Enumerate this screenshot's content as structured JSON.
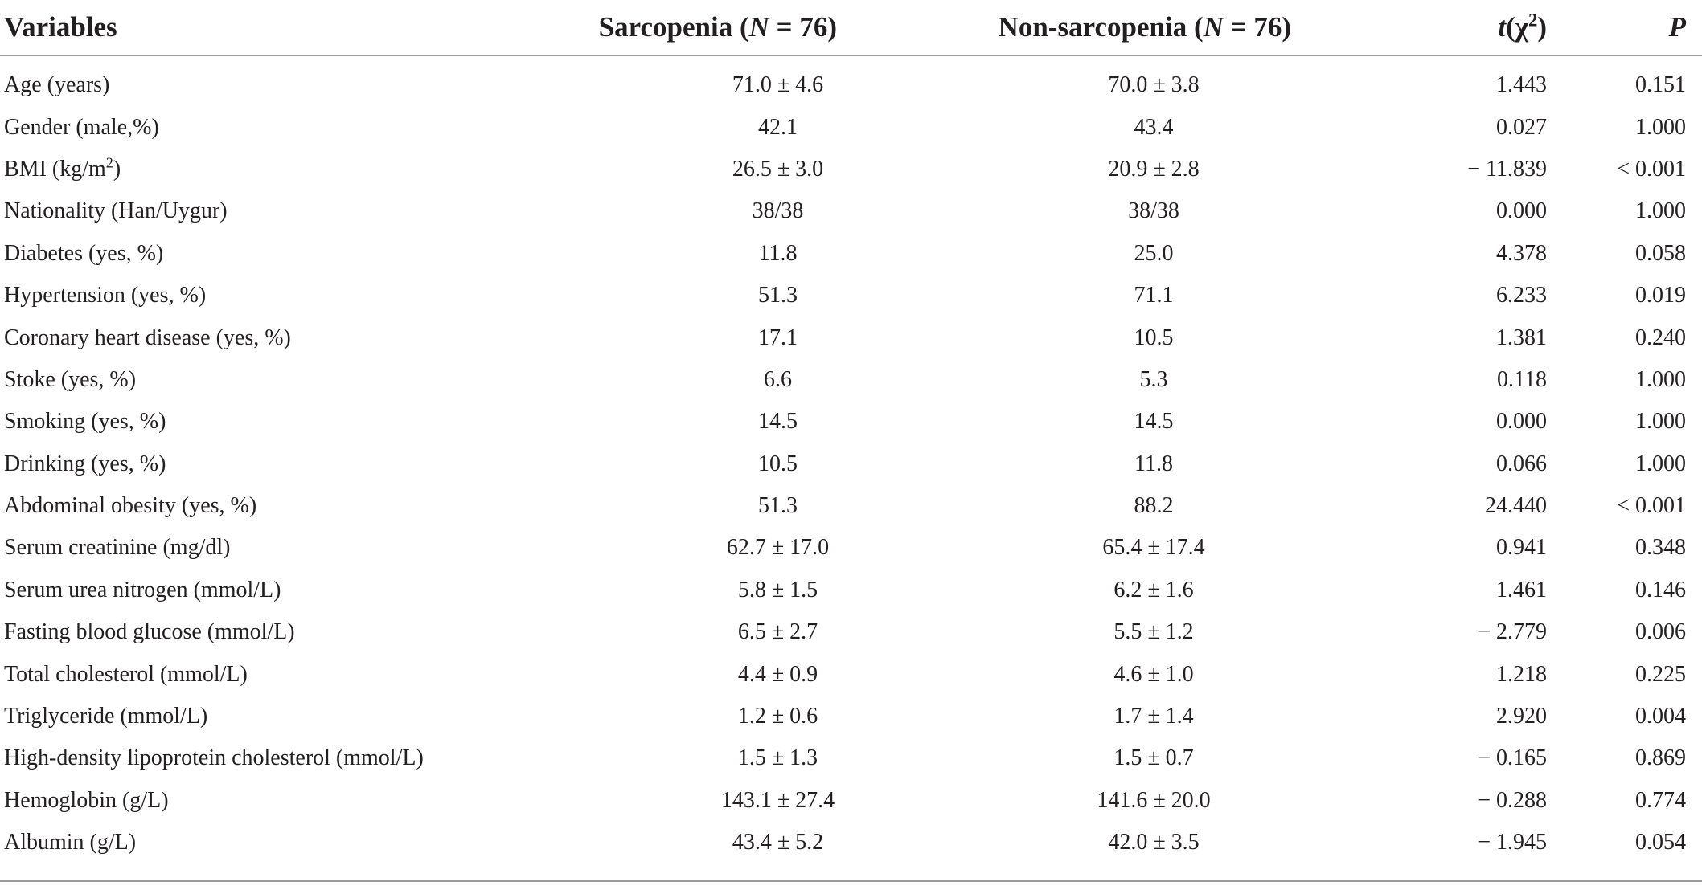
{
  "table": {
    "headers": {
      "variables": "Variables",
      "sarcopenia_prefix": "Sarcopenia (",
      "sarcopenia_n": "N",
      "sarcopenia_suffix": " = 76)",
      "non_prefix": "Non-sarcopenia (",
      "non_n": "N",
      "non_suffix": " = 76)",
      "t_italic": "t",
      "t_open": "(χ",
      "t_sup": "2",
      "t_close": ")",
      "p": "P"
    },
    "rows": [
      {
        "variable": "Age (years)",
        "sarcopenia": "71.0 ± 4.6",
        "non_sarcopenia": "70.0 ± 3.8",
        "t": "1.443",
        "p": "0.151"
      },
      {
        "variable": "Gender (male,%)",
        "sarcopenia": "42.1",
        "non_sarcopenia": "43.4",
        "t": "0.027",
        "p": "1.000"
      },
      {
        "variable": "BMI (kg/m",
        "variable_sup": "2",
        "variable_suffix": ")",
        "sarcopenia": "26.5 ± 3.0",
        "non_sarcopenia": "20.9 ± 2.8",
        "t": "− 11.839",
        "p": "<  0.001"
      },
      {
        "variable": "Nationality (Han/Uygur)",
        "sarcopenia": "38/38",
        "non_sarcopenia": "38/38",
        "t": "0.000",
        "p": "1.000"
      },
      {
        "variable": "Diabetes (yes, %)",
        "sarcopenia": "11.8",
        "non_sarcopenia": "25.0",
        "t": "4.378",
        "p": "0.058"
      },
      {
        "variable": "Hypertension (yes, %)",
        "sarcopenia": "51.3",
        "non_sarcopenia": "71.1",
        "t": "6.233",
        "p": "0.019"
      },
      {
        "variable": "Coronary heart disease (yes, %)",
        "sarcopenia": "17.1",
        "non_sarcopenia": "10.5",
        "t": "1.381",
        "p": "0.240"
      },
      {
        "variable": "Stoke (yes, %)",
        "sarcopenia": "6.6",
        "non_sarcopenia": "5.3",
        "t": "0.118",
        "p": "1.000"
      },
      {
        "variable": "Smoking (yes, %)",
        "sarcopenia": "14.5",
        "non_sarcopenia": "14.5",
        "t": "0.000",
        "p": "1.000"
      },
      {
        "variable": "Drinking (yes, %)",
        "sarcopenia": "10.5",
        "non_sarcopenia": "11.8",
        "t": "0.066",
        "p": "1.000"
      },
      {
        "variable": "Abdominal obesity (yes, %)",
        "sarcopenia": "51.3",
        "non_sarcopenia": "88.2",
        "t": "24.440",
        "p": "<  0.001"
      },
      {
        "variable": "Serum creatinine (mg/dl)",
        "sarcopenia": "62.7 ± 17.0",
        "non_sarcopenia": "65.4 ± 17.4",
        "t": "0.941",
        "p": "0.348"
      },
      {
        "variable": "Serum urea nitrogen (mmol/L)",
        "sarcopenia": "5.8 ± 1.5",
        "non_sarcopenia": "6.2 ± 1.6",
        "t": "1.461",
        "p": "0.146"
      },
      {
        "variable": "Fasting blood glucose (mmol/L)",
        "sarcopenia": "6.5 ± 2.7",
        "non_sarcopenia": "5.5 ± 1.2",
        "t": "− 2.779",
        "p": "0.006"
      },
      {
        "variable": "Total cholesterol (mmol/L)",
        "sarcopenia": "4.4 ± 0.9",
        "non_sarcopenia": "4.6 ± 1.0",
        "t": "1.218",
        "p": "0.225"
      },
      {
        "variable": "Triglyceride (mmol/L)",
        "sarcopenia": "1.2 ± 0.6",
        "non_sarcopenia": "1.7 ± 1.4",
        "t": "2.920",
        "p": "0.004"
      },
      {
        "variable": "High-density lipoprotein cholesterol (mmol/L)",
        "sarcopenia": "1.5 ± 1.3",
        "non_sarcopenia": "1.5 ± 0.7",
        "t": "− 0.165",
        "p": "0.869"
      },
      {
        "variable": "Hemoglobin (g/L)",
        "sarcopenia": "143.1 ± 27.4",
        "non_sarcopenia": "141.6 ± 20.0",
        "t": "− 0.288",
        "p": "0.774"
      },
      {
        "variable": "Albumin (g/L)",
        "sarcopenia": "43.4 ± 5.2",
        "non_sarcopenia": "42.0 ± 3.5",
        "t": "− 1.945",
        "p": "0.054"
      }
    ]
  }
}
